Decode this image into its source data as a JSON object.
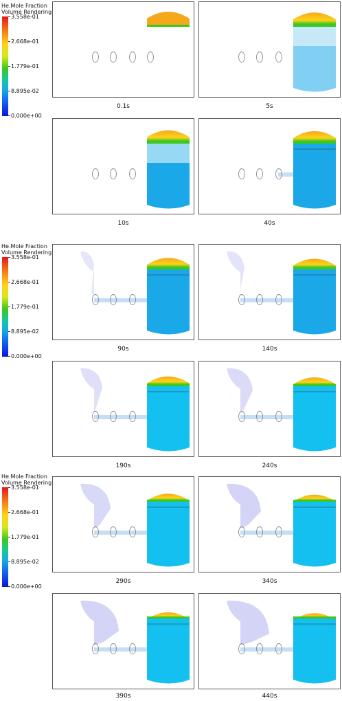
{
  "legends": [
    {
      "title": "He.Mole Fraction",
      "subtitle": "Volume Rendering 1",
      "ticks": [
        "3.558e-01",
        "2.668e-01",
        "1.779e-01",
        "8.895e-02",
        "0.000e+00"
      ]
    },
    {
      "title": "He.Mole Fraction",
      "subtitle": "Volume Rendering 1",
      "ticks": [
        "3.558e-01",
        "2.668e-01",
        "1.779e-01",
        "8.895e-02",
        "0.000e+00"
      ]
    },
    {
      "title": "He.Mole Fraction",
      "subtitle": "Volume Rendering 1",
      "ticks": [
        "3.558e-01",
        "2.668e-01",
        "1.779e-01",
        "8.895e-02",
        "0.000e+00"
      ]
    }
  ],
  "colors": {
    "max": "#e8141a",
    "high": "#ffd21a",
    "mid": "#3ec81e",
    "low": "#14a8e8",
    "min": "#0a14d8",
    "dome": "#f5a81a",
    "tank": "#1aa8e8",
    "tank_late": "#14c0f0",
    "plume": "#b8b8f0",
    "ellipse": "#888888"
  },
  "panels": [
    {
      "label": "0.1s",
      "stage": 0
    },
    {
      "label": "5s",
      "stage": 1
    },
    {
      "label": "10s",
      "stage": 2
    },
    {
      "label": "40s",
      "stage": 3
    },
    {
      "label": "90s",
      "stage": 4
    },
    {
      "label": "140s",
      "stage": 5
    },
    {
      "label": "190s",
      "stage": 6
    },
    {
      "label": "240s",
      "stage": 7
    },
    {
      "label": "290s",
      "stage": 8
    },
    {
      "label": "340s",
      "stage": 9
    },
    {
      "label": "390s",
      "stage": 10
    },
    {
      "label": "440s",
      "stage": 11
    }
  ]
}
